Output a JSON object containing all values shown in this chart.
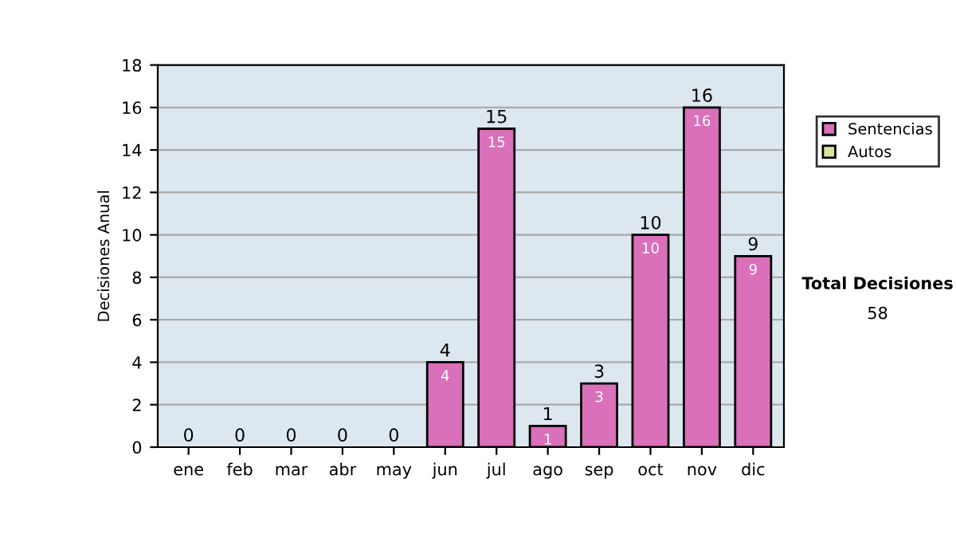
{
  "chart_data": {
    "type": "bar",
    "ylabel": "Decisiones Anual",
    "categories": [
      "ene",
      "feb",
      "mar",
      "abr",
      "may",
      "jun",
      "jul",
      "ago",
      "sep",
      "oct",
      "nov",
      "dic"
    ],
    "series": [
      {
        "name": "Sentencias",
        "color": "#da70b9",
        "values": [
          0,
          0,
          0,
          0,
          0,
          4,
          15,
          1,
          3,
          10,
          16,
          9
        ],
        "value_labels": [
          null,
          null,
          null,
          null,
          null,
          "4",
          "15",
          "1",
          "3",
          "10",
          "16",
          "9"
        ]
      },
      {
        "name": "Autos",
        "color": "#d4e89c",
        "values": [
          0,
          0,
          0,
          0,
          0,
          0,
          0,
          0,
          0,
          0,
          0,
          0
        ]
      }
    ],
    "stacked": true,
    "totals": [
      "0",
      "0",
      "0",
      "0",
      "0",
      "4",
      "15",
      "1",
      "3",
      "10",
      "16",
      "9"
    ],
    "ylim": [
      0,
      18
    ],
    "yticks": [
      0,
      2,
      4,
      6,
      8,
      10,
      12,
      14,
      16,
      18
    ],
    "grid": "y",
    "legend": "right",
    "annotations": [
      "Total Decisiones",
      "58"
    ]
  }
}
